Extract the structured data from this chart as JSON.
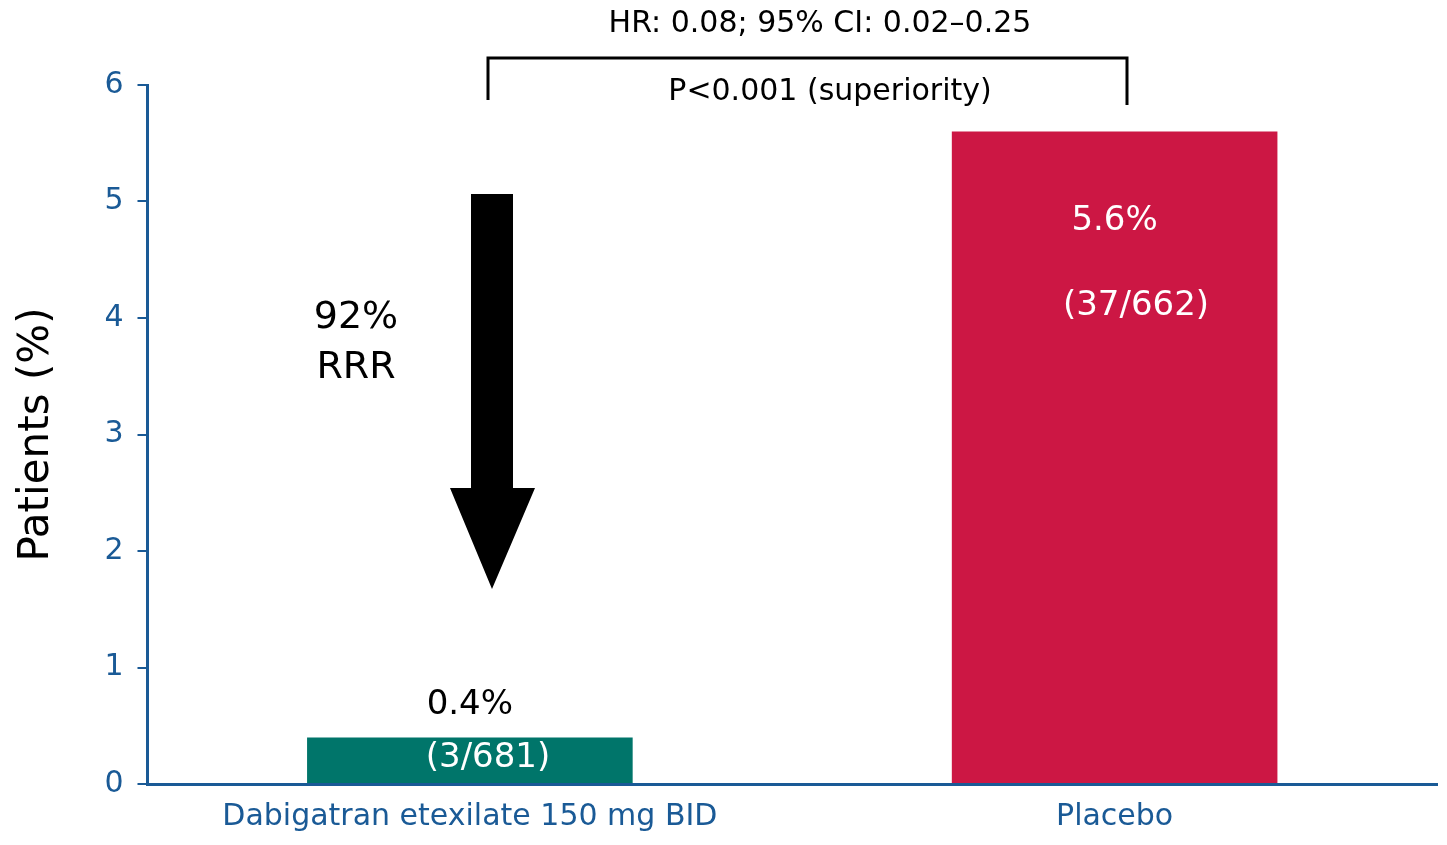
{
  "chart_data": {
    "type": "bar",
    "ylabel": "Patients (%)",
    "categories": [
      "Dabigatran etexilate 150 mg BID",
      "Placebo"
    ],
    "values": [
      0.4,
      5.6
    ],
    "colors": [
      "#00756a",
      "#cc1744"
    ],
    "value_labels": [
      "0.4%",
      "5.6%"
    ],
    "ylim": [
      0,
      6
    ],
    "yticks": [
      0,
      1,
      2,
      3,
      4,
      5,
      6
    ],
    "grid": false,
    "legend": false,
    "annotations": [
      "HR: 0.08; 95% CI: 0.02–0.25",
      "P<0.001 (superiority)",
      "92% RRR",
      "(3/681)",
      "(37/662)"
    ]
  }
}
